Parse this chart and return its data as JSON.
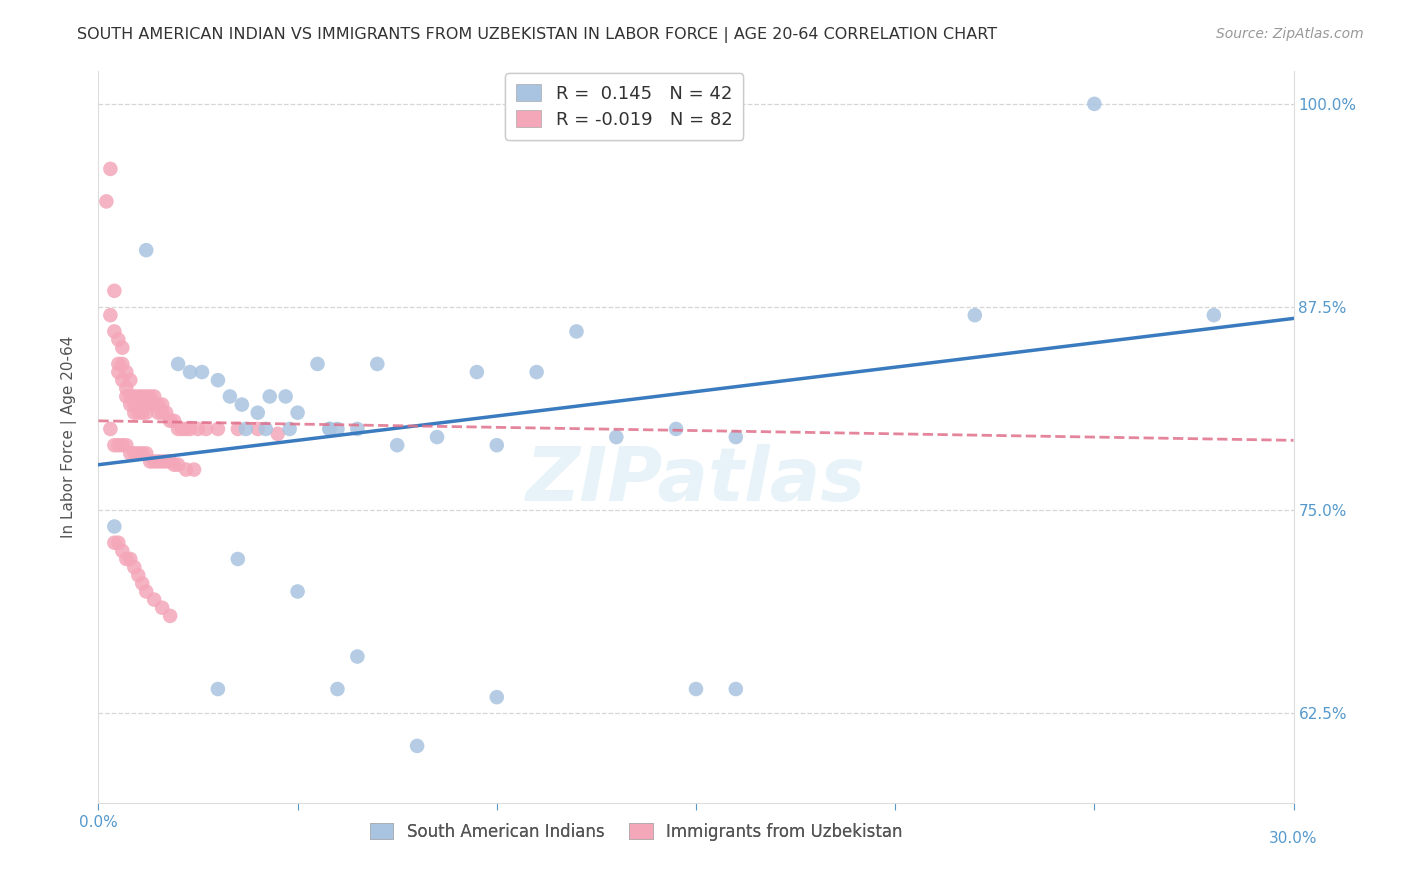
{
  "title": "SOUTH AMERICAN INDIAN VS IMMIGRANTS FROM UZBEKISTAN IN LABOR FORCE | AGE 20-64 CORRELATION CHART",
  "source": "Source: ZipAtlas.com",
  "ylabel": "In Labor Force | Age 20-64",
  "xlim": [
    0.0,
    0.3
  ],
  "ylim": [
    0.57,
    1.02
  ],
  "y_ticks": [
    0.625,
    0.75,
    0.875,
    1.0
  ],
  "y_tick_labels": [
    "62.5%",
    "75.0%",
    "87.5%",
    "100.0%"
  ],
  "x_ticks": [
    0.0,
    0.05,
    0.1,
    0.15,
    0.2,
    0.25,
    0.3
  ],
  "watermark": "ZIPatlas",
  "blue_scatter_x": [
    0.004,
    0.012,
    0.02,
    0.023,
    0.026,
    0.03,
    0.033,
    0.036,
    0.04,
    0.043,
    0.047,
    0.05,
    0.055,
    0.06,
    0.065,
    0.07,
    0.075,
    0.085,
    0.095,
    0.1,
    0.11,
    0.12,
    0.13,
    0.145,
    0.16,
    0.22,
    0.25,
    0.037,
    0.042,
    0.048,
    0.058,
    0.058,
    0.15,
    0.16,
    0.28,
    0.035,
    0.05,
    0.065,
    0.1,
    0.03,
    0.06,
    0.08
  ],
  "blue_scatter_y": [
    0.74,
    0.91,
    0.84,
    0.835,
    0.835,
    0.83,
    0.82,
    0.815,
    0.81,
    0.82,
    0.82,
    0.81,
    0.84,
    0.8,
    0.8,
    0.84,
    0.79,
    0.795,
    0.835,
    0.79,
    0.835,
    0.86,
    0.795,
    0.8,
    0.795,
    0.87,
    1.0,
    0.8,
    0.8,
    0.8,
    0.8,
    0.8,
    0.64,
    0.64,
    0.87,
    0.72,
    0.7,
    0.66,
    0.635,
    0.64,
    0.64,
    0.605
  ],
  "pink_scatter_x": [
    0.002,
    0.003,
    0.003,
    0.004,
    0.004,
    0.005,
    0.005,
    0.005,
    0.006,
    0.006,
    0.006,
    0.007,
    0.007,
    0.007,
    0.008,
    0.008,
    0.008,
    0.009,
    0.009,
    0.009,
    0.01,
    0.01,
    0.01,
    0.011,
    0.011,
    0.011,
    0.012,
    0.012,
    0.012,
    0.013,
    0.013,
    0.014,
    0.014,
    0.015,
    0.015,
    0.016,
    0.016,
    0.017,
    0.018,
    0.019,
    0.02,
    0.021,
    0.022,
    0.023,
    0.025,
    0.027,
    0.03,
    0.035,
    0.04,
    0.045,
    0.003,
    0.004,
    0.005,
    0.006,
    0.007,
    0.008,
    0.009,
    0.01,
    0.011,
    0.012,
    0.013,
    0.014,
    0.015,
    0.016,
    0.017,
    0.018,
    0.019,
    0.02,
    0.022,
    0.024,
    0.004,
    0.005,
    0.006,
    0.007,
    0.008,
    0.009,
    0.01,
    0.011,
    0.012,
    0.014,
    0.016,
    0.018
  ],
  "pink_scatter_y": [
    0.94,
    0.96,
    0.87,
    0.885,
    0.86,
    0.855,
    0.84,
    0.835,
    0.85,
    0.84,
    0.83,
    0.835,
    0.825,
    0.82,
    0.83,
    0.82,
    0.815,
    0.82,
    0.815,
    0.81,
    0.82,
    0.815,
    0.81,
    0.82,
    0.815,
    0.81,
    0.82,
    0.815,
    0.81,
    0.82,
    0.815,
    0.82,
    0.815,
    0.815,
    0.81,
    0.815,
    0.81,
    0.81,
    0.805,
    0.805,
    0.8,
    0.8,
    0.8,
    0.8,
    0.8,
    0.8,
    0.8,
    0.8,
    0.8,
    0.797,
    0.8,
    0.79,
    0.79,
    0.79,
    0.79,
    0.785,
    0.785,
    0.785,
    0.785,
    0.785,
    0.78,
    0.78,
    0.78,
    0.78,
    0.78,
    0.78,
    0.778,
    0.778,
    0.775,
    0.775,
    0.73,
    0.73,
    0.725,
    0.72,
    0.72,
    0.715,
    0.71,
    0.705,
    0.7,
    0.695,
    0.69,
    0.685
  ],
  "blue_line_x": [
    0.0,
    0.3
  ],
  "blue_line_y": [
    0.778,
    0.868
  ],
  "pink_line_x": [
    0.0,
    0.3
  ],
  "pink_line_y": [
    0.805,
    0.793
  ],
  "blue_color": "#a8c4e0",
  "pink_color": "#f4a7b9",
  "blue_line_color": "#3a7bbf",
  "pink_line_color": "#e0708a",
  "R_blue": "0.145",
  "N_blue": "42",
  "R_pink": "-0.019",
  "N_pink": "82",
  "legend_label_blue": "South American Indians",
  "legend_label_pink": "Immigrants from Uzbekistan",
  "background_color": "#ffffff",
  "grid_color": "#cccccc",
  "title_color": "#333333",
  "axis_color": "#5599cc"
}
